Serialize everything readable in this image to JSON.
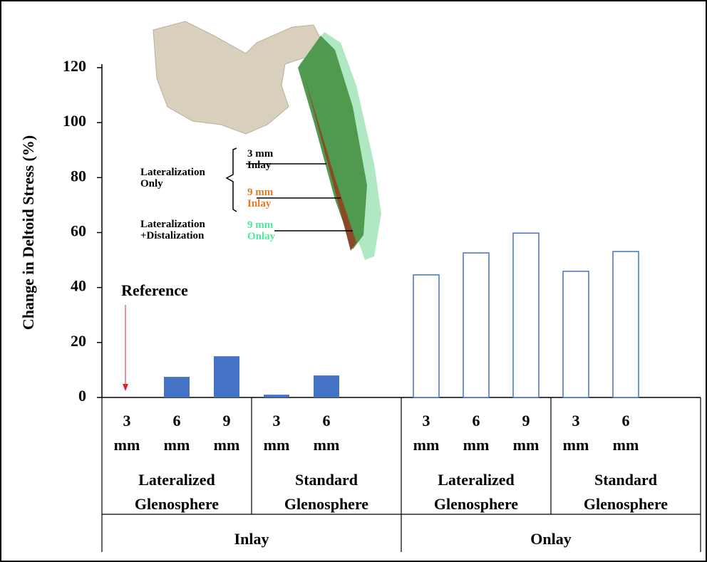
{
  "chart_data": {
    "type": "bar",
    "y_label": "Change in Deltoid Stress (%)",
    "ylim": [
      0,
      120
    ],
    "yticks": [
      0,
      20,
      40,
      60,
      80,
      100,
      120
    ],
    "categories": [
      "3 mm",
      "6 mm",
      "9 mm",
      "3 mm",
      "6 mm",
      null,
      "3 mm",
      "6 mm",
      "9 mm",
      "3 mm",
      "6 mm",
      null
    ],
    "groups": [
      "Lateralized Glenosphere",
      "Standard Glenosphere",
      "Lateralized Glenosphere",
      "Standard Glenosphere"
    ],
    "supergroups": [
      "Inlay",
      "Onlay"
    ],
    "series": [
      {
        "color": "#4472c4",
        "filled": true,
        "values": [
          0,
          7.5,
          15,
          1,
          8,
          null,
          null,
          null,
          null,
          null,
          null,
          null
        ]
      },
      {
        "color": "#4472c4",
        "filled": false,
        "values": [
          null,
          null,
          null,
          null,
          null,
          null,
          44.6,
          52.6,
          59.8,
          45.9,
          53.1,
          null
        ]
      }
    ],
    "annotation": {
      "text": "Reference",
      "color": "#e02020"
    },
    "inset": {
      "group_labels": [
        "Lateralization Only",
        "Lateralization +Distalization"
      ],
      "items": [
        {
          "label": "3 mm Inlay",
          "color": "#000000"
        },
        {
          "label": "9 mm Inlay",
          "color": "#e87722"
        },
        {
          "label": "9 mm Onlay",
          "color": "#4ee89a"
        }
      ]
    }
  }
}
